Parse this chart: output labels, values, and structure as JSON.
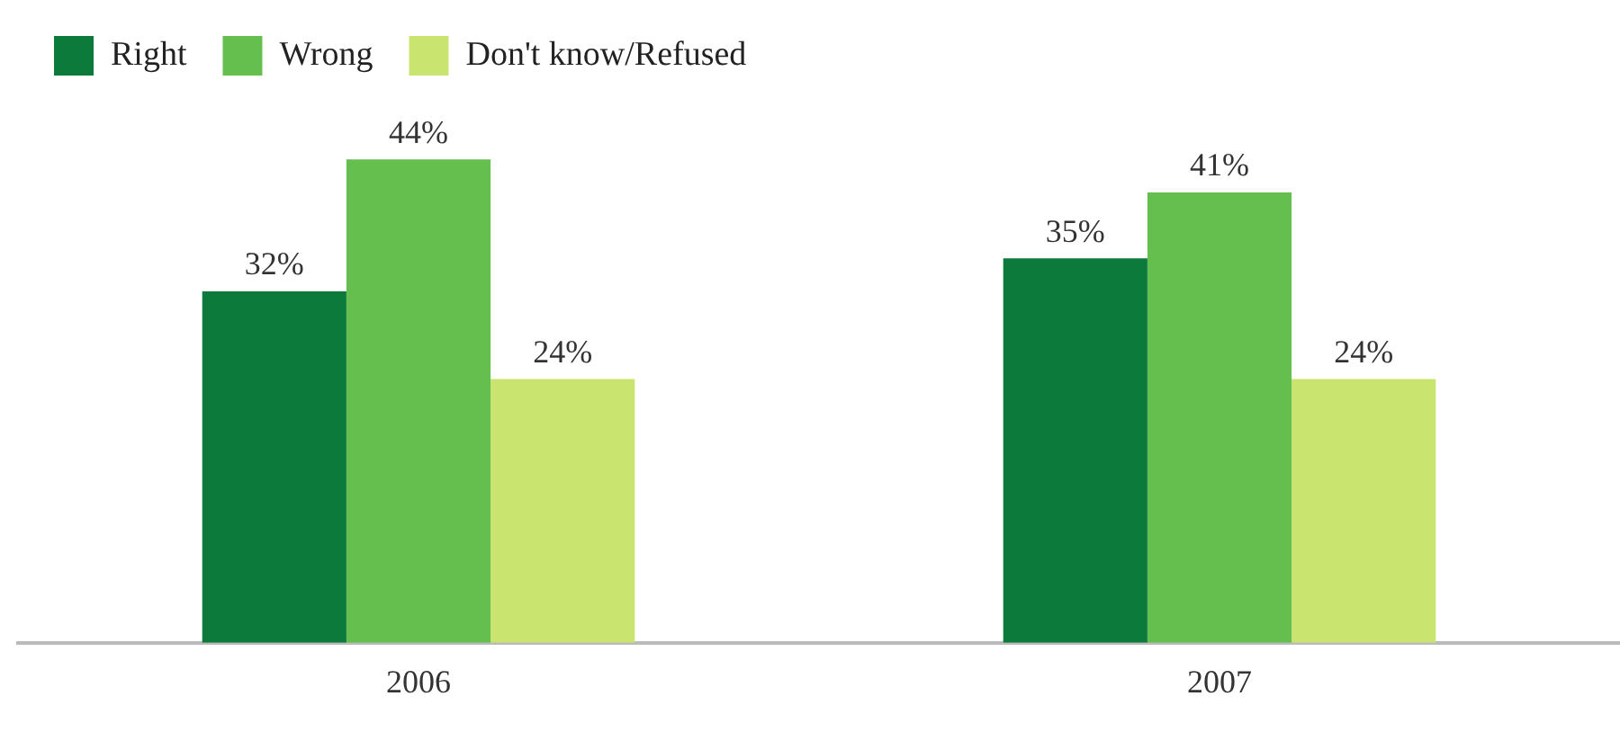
{
  "chart_data": {
    "type": "bar",
    "categories": [
      "2006",
      "2007"
    ],
    "series": [
      {
        "name": "Right",
        "color": "#0b7a3b",
        "values": [
          32,
          35
        ],
        "value_labels": [
          "32%",
          "35%"
        ]
      },
      {
        "name": "Wrong",
        "color": "#64bf4f",
        "values": [
          44,
          41
        ],
        "value_labels": [
          "44%",
          "41%"
        ]
      },
      {
        "name": "Don't know/Refused",
        "color": "#c9e56f",
        "values": [
          24,
          24
        ],
        "value_labels": [
          "24%",
          "24%"
        ]
      }
    ],
    "legend": "top left",
    "grid": false
  }
}
